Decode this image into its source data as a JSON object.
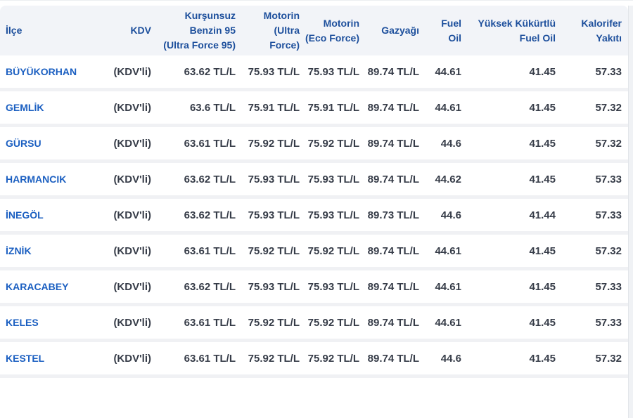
{
  "table": {
    "columns": [
      {
        "key": "ilce",
        "label": "İlçe"
      },
      {
        "key": "kdv",
        "label": "KDV"
      },
      {
        "key": "benzin",
        "label": "Kurşunsuz\nBenzin 95\n(Ultra Force 95)"
      },
      {
        "key": "motorin_ultra",
        "label": "Motorin\n(Ultra\nForce)"
      },
      {
        "key": "motorin_eco",
        "label": "Motorin\n(Eco Force)"
      },
      {
        "key": "gazyagi",
        "label": "Gazyağı"
      },
      {
        "key": "fuel_oil",
        "label": "Fuel\nOil"
      },
      {
        "key": "yuksek_kukurtlu",
        "label": "Yüksek Kükürtlü\nFuel Oil"
      },
      {
        "key": "kalorifer",
        "label": "Kalorifer\nYakıtı"
      }
    ],
    "rows": [
      {
        "ilce": "BÜYÜKORHAN",
        "kdv": "(KDV'li)",
        "benzin": "63.62 TL/L",
        "motorin_ultra": "75.93 TL/L",
        "motorin_eco": "75.93 TL/L",
        "gazyagi": "89.74 TL/L",
        "fuel_oil": "44.61",
        "yuksek_kukurtlu": "41.45",
        "kalorifer": "57.33"
      },
      {
        "ilce": "GEMLİK",
        "kdv": "(KDV'li)",
        "benzin": "63.6 TL/L",
        "motorin_ultra": "75.91 TL/L",
        "motorin_eco": "75.91 TL/L",
        "gazyagi": "89.74 TL/L",
        "fuel_oil": "44.61",
        "yuksek_kukurtlu": "41.45",
        "kalorifer": "57.32"
      },
      {
        "ilce": "GÜRSU",
        "kdv": "(KDV'li)",
        "benzin": "63.61 TL/L",
        "motorin_ultra": "75.92 TL/L",
        "motorin_eco": "75.92 TL/L",
        "gazyagi": "89.74 TL/L",
        "fuel_oil": "44.6",
        "yuksek_kukurtlu": "41.45",
        "kalorifer": "57.32"
      },
      {
        "ilce": "HARMANCIK",
        "kdv": "(KDV'li)",
        "benzin": "63.62 TL/L",
        "motorin_ultra": "75.93 TL/L",
        "motorin_eco": "75.93 TL/L",
        "gazyagi": "89.74 TL/L",
        "fuel_oil": "44.62",
        "yuksek_kukurtlu": "41.45",
        "kalorifer": "57.33"
      },
      {
        "ilce": "İNEGÖL",
        "kdv": "(KDV'li)",
        "benzin": "63.62 TL/L",
        "motorin_ultra": "75.93 TL/L",
        "motorin_eco": "75.93 TL/L",
        "gazyagi": "89.73 TL/L",
        "fuel_oil": "44.6",
        "yuksek_kukurtlu": "41.44",
        "kalorifer": "57.33"
      },
      {
        "ilce": "İZNİK",
        "kdv": "(KDV'li)",
        "benzin": "63.61 TL/L",
        "motorin_ultra": "75.92 TL/L",
        "motorin_eco": "75.92 TL/L",
        "gazyagi": "89.74 TL/L",
        "fuel_oil": "44.61",
        "yuksek_kukurtlu": "41.45",
        "kalorifer": "57.32"
      },
      {
        "ilce": "KARACABEY",
        "kdv": "(KDV'li)",
        "benzin": "63.62 TL/L",
        "motorin_ultra": "75.93 TL/L",
        "motorin_eco": "75.93 TL/L",
        "gazyagi": "89.74 TL/L",
        "fuel_oil": "44.61",
        "yuksek_kukurtlu": "41.45",
        "kalorifer": "57.33"
      },
      {
        "ilce": "KELES",
        "kdv": "(KDV'li)",
        "benzin": "63.61 TL/L",
        "motorin_ultra": "75.92 TL/L",
        "motorin_eco": "75.92 TL/L",
        "gazyagi": "89.74 TL/L",
        "fuel_oil": "44.61",
        "yuksek_kukurtlu": "41.45",
        "kalorifer": "57.33"
      },
      {
        "ilce": "KESTEL",
        "kdv": "(KDV'li)",
        "benzin": "63.61 TL/L",
        "motorin_ultra": "75.92 TL/L",
        "motorin_eco": "75.92 TL/L",
        "gazyagi": "89.74 TL/L",
        "fuel_oil": "44.6",
        "yuksek_kukurtlu": "41.45",
        "kalorifer": "57.32"
      }
    ]
  },
  "colors": {
    "header_bg": "#f2f4f8",
    "header_text": "#1d4f9c",
    "district_link": "#1b5fc1",
    "cell_text": "#363c48",
    "row_divider": "#f0f1f4"
  }
}
